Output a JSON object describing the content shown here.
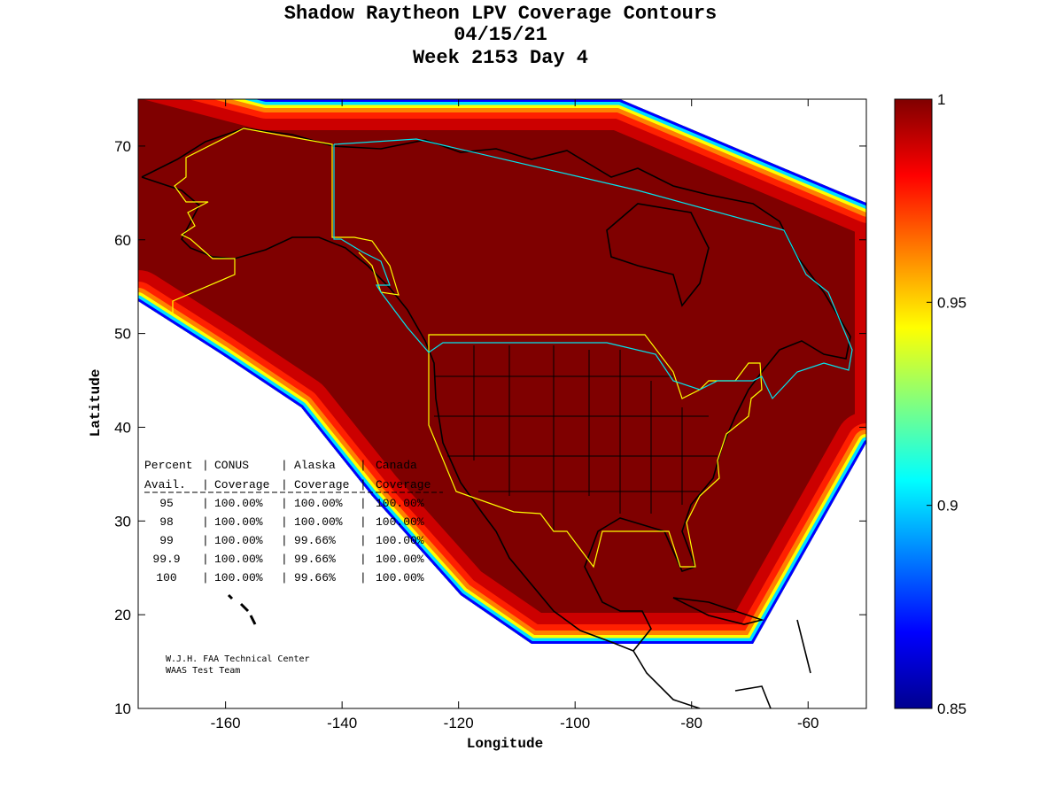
{
  "chart_data": {
    "type": "heatmap",
    "title": [
      "Shadow Raytheon LPV Coverage Contours",
      "04/15/21",
      "Week 2153 Day 4"
    ],
    "xlabel": "Longitude",
    "ylabel": "Latitude",
    "xlim": [
      -175,
      -50
    ],
    "ylim": [
      10,
      75
    ],
    "xticks": [
      -160,
      -140,
      -120,
      -100,
      -80,
      -60
    ],
    "yticks": [
      10,
      20,
      30,
      40,
      50,
      60,
      70
    ],
    "colorbar": {
      "range": [
        0.85,
        1
      ],
      "ticks": [
        "0.85",
        "0.9",
        "0.95",
        "1"
      ],
      "colormap": "jet"
    },
    "grid": false
  },
  "table": {
    "header1": [
      "Percent",
      "CONUS",
      "Alaska",
      "Canada"
    ],
    "header2": [
      "Avail.",
      "Coverage",
      "Coverage",
      "Coverage"
    ],
    "rows": [
      [
        "95",
        "100.00%",
        "100.00%",
        "100.00%"
      ],
      [
        "98",
        "100.00%",
        "100.00%",
        "100.00%"
      ],
      [
        "99",
        "100.00%",
        "99.66%",
        "100.00%"
      ],
      [
        "99.9",
        "100.00%",
        "99.66%",
        "100.00%"
      ],
      [
        "100",
        "100.00%",
        "99.66%",
        "100.00%"
      ]
    ]
  },
  "credit": [
    "W.J.H. FAA Technical Center",
    "WAAS Test Team"
  ],
  "colors": {
    "full": "#7f0000",
    "boundary_conus_alaska": "#ffff00",
    "boundary_canada": "#00e5ee"
  }
}
